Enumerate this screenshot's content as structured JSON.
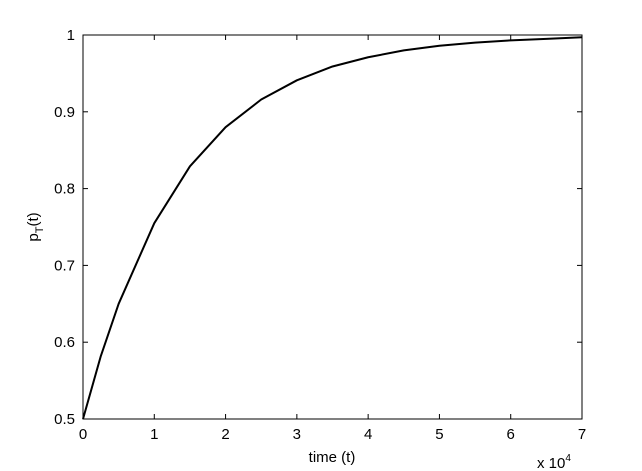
{
  "chart_data": {
    "type": "line",
    "xlabel": "time (t)",
    "x_multiplier": "x 10",
    "x_multiplier_exponent": "4",
    "ylabel": "p",
    "ylabel_subscript": "T",
    "ylabel_suffix": "(t)",
    "x": [
      0,
      0.25,
      0.5,
      1,
      1.5,
      2,
      2.5,
      3,
      3.5,
      4,
      4.5,
      5,
      5.5,
      6,
      6.5,
      7
    ],
    "series": [
      {
        "color": "#000000",
        "values": [
          0.5,
          0.582,
          0.65,
          0.755,
          0.829,
          0.88,
          0.916,
          0.941,
          0.959,
          0.971,
          0.98,
          0.986,
          0.99,
          0.993,
          0.995,
          0.997
        ]
      }
    ],
    "xlim": [
      0,
      7
    ],
    "xticks": [
      0,
      1,
      2,
      3,
      4,
      5,
      6,
      7
    ],
    "ylim": [
      0.5,
      1
    ],
    "yticks": [
      0.5,
      0.6,
      0.7,
      0.8,
      0.9,
      1
    ],
    "grid": false
  }
}
